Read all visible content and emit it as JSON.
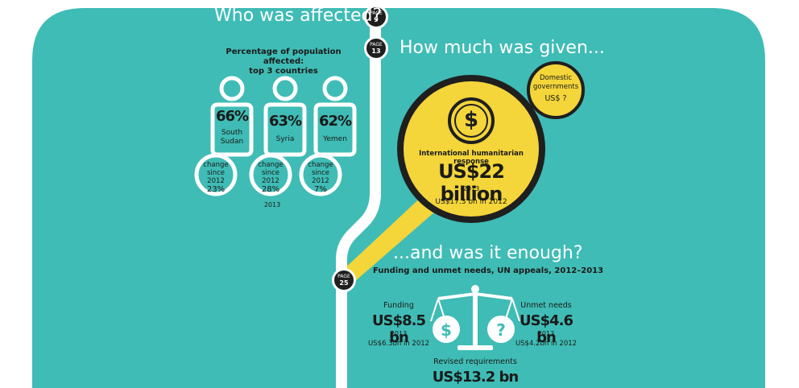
{
  "colors": {
    "teal": "#3fbcb5",
    "yellow": "#f4d53a",
    "dark": "#1f1f1f",
    "white": "#ffffff"
  },
  "sections": {
    "who": {
      "title": "Who was affected?",
      "page_label": "PAGE",
      "page_number": "9"
    },
    "how_much": {
      "title": "How much was given...",
      "page_label": "PAGE",
      "page_number": "13"
    },
    "enough": {
      "title": "...and was it enough?",
      "page_label": "PAGE",
      "page_number": "25"
    }
  },
  "affected": {
    "heading_line1": "Percentage of population affected:",
    "heading_line2": "top 3 countries",
    "year": "2013",
    "countries": [
      {
        "percent": "66%",
        "name_line1": "South",
        "name_line2": "Sudan",
        "change_line1": "change",
        "change_line2": "since 2012",
        "change_value": "23%"
      },
      {
        "percent": "63%",
        "name_line1": "Syria",
        "name_line2": "",
        "change_line1": "change",
        "change_line2": "since 2012",
        "change_value": "28%"
      },
      {
        "percent": "62%",
        "name_line1": "Yemen",
        "name_line2": "",
        "change_line1": "change",
        "change_line2": "since 2012",
        "change_value": "7%"
      }
    ]
  },
  "response": {
    "icon": "dollar-icon",
    "label": "International humanitarian response",
    "amount": "US$22 billion",
    "year": "2013",
    "previous": "US$17.3 bn in 2012"
  },
  "domestic": {
    "line1": "Domestic",
    "line2": "governments",
    "amount": "US$ ?"
  },
  "funding": {
    "heading": "Funding and unmet needs, UN appeals, 2012–2013",
    "funding_label": "Funding",
    "funding_amount": "US$8.5 bn",
    "funding_year": "2013",
    "funding_previous": "US$6.3bn in 2012",
    "unmet_label": "Unmet needs",
    "unmet_amount": "US$4.6 bn",
    "unmet_year": "2013",
    "unmet_previous": "US$4.2bn in 2012",
    "revised_label": "Revised requirements",
    "revised_amount": "US$13.2 bn",
    "scale_left_symbol": "$",
    "scale_right_symbol": "?",
    "scale_icon": "scale-icon"
  }
}
